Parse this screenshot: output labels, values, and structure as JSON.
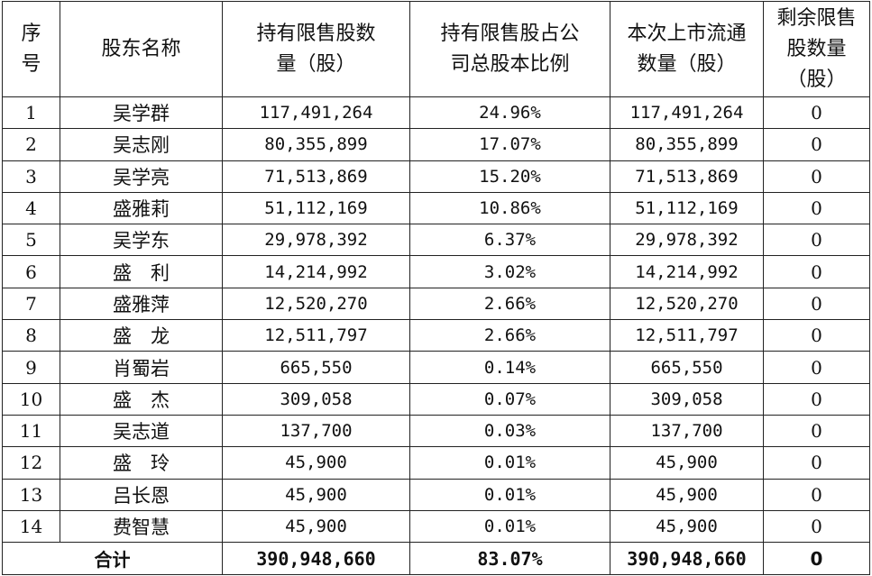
{
  "headers": {
    "seq": [
      "序",
      "号"
    ],
    "holder": "股东名称",
    "restricted_shares": [
      "持有限售股数",
      "量（股）"
    ],
    "ratio": [
      "持有限售股占公",
      "司总股本比例"
    ],
    "listed_shares": [
      "本次上市流通",
      "数量（股）"
    ],
    "remaining": [
      "剩余限售",
      "股数量",
      "（股）"
    ]
  },
  "rows": [
    {
      "seq": "1",
      "name": "吴学群",
      "restricted": "117,491,264",
      "ratio": "24.96%",
      "listed": "117,491,264",
      "remaining": "0"
    },
    {
      "seq": "2",
      "name": "吴志刚",
      "restricted": "80,355,899",
      "ratio": "17.07%",
      "listed": "80,355,899",
      "remaining": "0"
    },
    {
      "seq": "3",
      "name": "吴学亮",
      "restricted": "71,513,869",
      "ratio": "15.20%",
      "listed": "71,513,869",
      "remaining": "0"
    },
    {
      "seq": "4",
      "name": "盛雅莉",
      "restricted": "51,112,169",
      "ratio": "10.86%",
      "listed": "51,112,169",
      "remaining": "0"
    },
    {
      "seq": "5",
      "name": "吴学东",
      "restricted": "29,978,392",
      "ratio": "6.37%",
      "listed": "29,978,392",
      "remaining": "0"
    },
    {
      "seq": "6",
      "name": "盛　利",
      "restricted": "14,214,992",
      "ratio": "3.02%",
      "listed": "14,214,992",
      "remaining": "0"
    },
    {
      "seq": "7",
      "name": "盛雅萍",
      "restricted": "12,520,270",
      "ratio": "2.66%",
      "listed": "12,520,270",
      "remaining": "0"
    },
    {
      "seq": "8",
      "name": "盛　龙",
      "restricted": "12,511,797",
      "ratio": "2.66%",
      "listed": "12,511,797",
      "remaining": "0"
    },
    {
      "seq": "9",
      "name": "肖蜀岩",
      "restricted": "665,550",
      "ratio": "0.14%",
      "listed": "665,550",
      "remaining": "0"
    },
    {
      "seq": "10",
      "name": "盛　杰",
      "restricted": "309,058",
      "ratio": "0.07%",
      "listed": "309,058",
      "remaining": "0"
    },
    {
      "seq": "11",
      "name": "吴志道",
      "restricted": "137,700",
      "ratio": "0.03%",
      "listed": "137,700",
      "remaining": "0"
    },
    {
      "seq": "12",
      "name": "盛　玲",
      "restricted": "45,900",
      "ratio": "0.01%",
      "listed": "45,900",
      "remaining": "0"
    },
    {
      "seq": "13",
      "name": "吕长恩",
      "restricted": "45,900",
      "ratio": "0.01%",
      "listed": "45,900",
      "remaining": "0"
    },
    {
      "seq": "14",
      "name": "费智慧",
      "restricted": "45,900",
      "ratio": "0.01%",
      "listed": "45,900",
      "remaining": "0"
    }
  ],
  "total": {
    "label": "合计",
    "restricted": "390,948,660",
    "ratio": "83.07%",
    "listed": "390,948,660",
    "remaining": "0"
  }
}
